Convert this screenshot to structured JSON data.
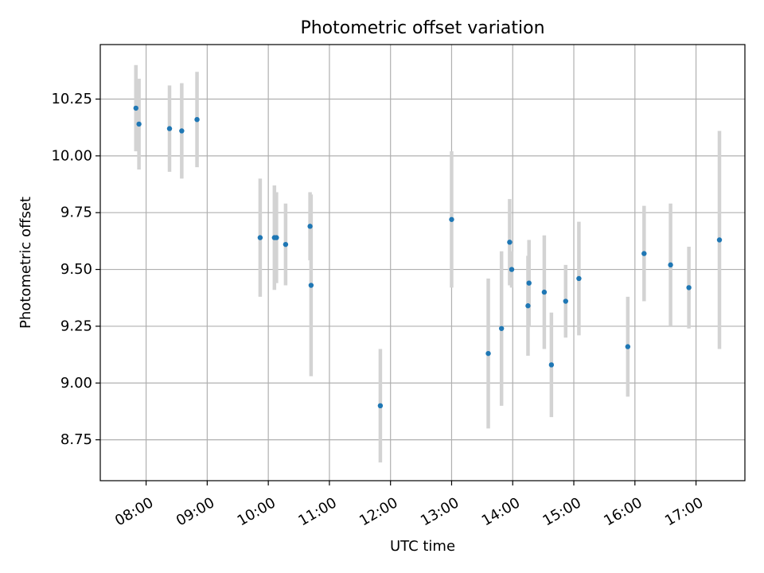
{
  "chart_data": {
    "type": "scatter",
    "title": "Photometric offset variation",
    "xlabel": "UTC time",
    "ylabel": "Photometric offset",
    "grid": true,
    "x_axis_kind": "time",
    "xlim": [
      "07:15",
      "17:48"
    ],
    "ylim": [
      8.57,
      10.49
    ],
    "x_ticks": [
      "08:00",
      "09:00",
      "10:00",
      "11:00",
      "12:00",
      "13:00",
      "14:00",
      "15:00",
      "16:00",
      "17:00"
    ],
    "y_ticks": [
      8.75,
      9.0,
      9.25,
      9.5,
      9.75,
      10.0,
      10.25
    ],
    "y_tick_labels": [
      "8.75",
      "9.00",
      "9.25",
      "9.50",
      "9.75",
      "10.00",
      "10.25"
    ],
    "colors": {
      "points": "#1f77b4",
      "errorbars": "#d3d3d3",
      "grid": "#b0b0b0"
    },
    "series": [
      {
        "points": [
          {
            "x": "07:50",
            "y": 10.21,
            "err": 0.19
          },
          {
            "x": "07:53",
            "y": 10.14,
            "err": 0.2
          },
          {
            "x": "08:23",
            "y": 10.12,
            "err": 0.19
          },
          {
            "x": "08:35",
            "y": 10.11,
            "err": 0.21
          },
          {
            "x": "08:50",
            "y": 10.16,
            "err": 0.21
          },
          {
            "x": "09:52",
            "y": 9.64,
            "err": 0.26
          },
          {
            "x": "10:06",
            "y": 9.64,
            "err": 0.23
          },
          {
            "x": "10:08",
            "y": 9.64,
            "err": 0.2
          },
          {
            "x": "10:17",
            "y": 9.61,
            "err": 0.18
          },
          {
            "x": "10:41",
            "y": 9.69,
            "err": 0.15
          },
          {
            "x": "10:42",
            "y": 9.43,
            "err": 0.4
          },
          {
            "x": "11:50",
            "y": 8.9,
            "err": 0.25
          },
          {
            "x": "13:00",
            "y": 9.72,
            "err": 0.3
          },
          {
            "x": "13:36",
            "y": 9.13,
            "err": 0.33
          },
          {
            "x": "13:49",
            "y": 9.24,
            "err": 0.34
          },
          {
            "x": "13:57",
            "y": 9.62,
            "err": 0.19
          },
          {
            "x": "13:59",
            "y": 9.5,
            "err": 0.08
          },
          {
            "x": "14:15",
            "y": 9.34,
            "err": 0.22
          },
          {
            "x": "14:16",
            "y": 9.44,
            "err": 0.19
          },
          {
            "x": "14:31",
            "y": 9.4,
            "err": 0.25
          },
          {
            "x": "14:38",
            "y": 9.08,
            "err": 0.23
          },
          {
            "x": "14:52",
            "y": 9.36,
            "err": 0.16
          },
          {
            "x": "15:05",
            "y": 9.46,
            "err": 0.25
          },
          {
            "x": "15:53",
            "y": 9.16,
            "err": 0.22
          },
          {
            "x": "16:09",
            "y": 9.57,
            "err": 0.21
          },
          {
            "x": "16:35",
            "y": 9.52,
            "err": 0.27
          },
          {
            "x": "16:53",
            "y": 9.42,
            "err": 0.18
          },
          {
            "x": "17:23",
            "y": 9.63,
            "err": 0.48
          }
        ]
      }
    ]
  }
}
